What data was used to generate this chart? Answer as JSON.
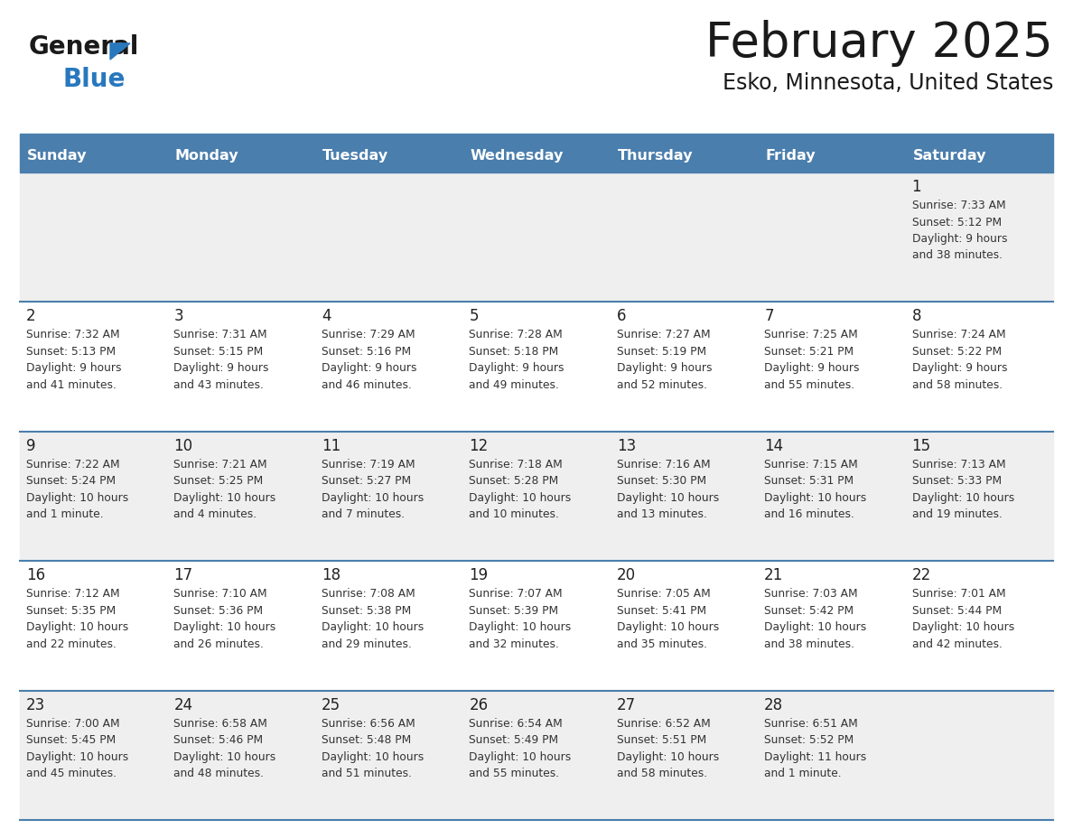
{
  "title": "February 2025",
  "subtitle": "Esko, Minnesota, United States",
  "header_bg": "#4a7ead",
  "header_text_color": "#ffffff",
  "days_of_week": [
    "Sunday",
    "Monday",
    "Tuesday",
    "Wednesday",
    "Thursday",
    "Friday",
    "Saturday"
  ],
  "row_bg_light": "#efefef",
  "row_bg_white": "#ffffff",
  "cell_text_color": "#333333",
  "day_num_color": "#222222",
  "divider_color": "#4a7ead",
  "calendar_data": [
    [
      null,
      null,
      null,
      null,
      null,
      null,
      {
        "day": "1",
        "sunrise": "Sunrise: 7:33 AM",
        "sunset": "Sunset: 5:12 PM",
        "daylight1": "Daylight: 9 hours",
        "daylight2": "and 38 minutes."
      }
    ],
    [
      {
        "day": "2",
        "sunrise": "Sunrise: 7:32 AM",
        "sunset": "Sunset: 5:13 PM",
        "daylight1": "Daylight: 9 hours",
        "daylight2": "and 41 minutes."
      },
      {
        "day": "3",
        "sunrise": "Sunrise: 7:31 AM",
        "sunset": "Sunset: 5:15 PM",
        "daylight1": "Daylight: 9 hours",
        "daylight2": "and 43 minutes."
      },
      {
        "day": "4",
        "sunrise": "Sunrise: 7:29 AM",
        "sunset": "Sunset: 5:16 PM",
        "daylight1": "Daylight: 9 hours",
        "daylight2": "and 46 minutes."
      },
      {
        "day": "5",
        "sunrise": "Sunrise: 7:28 AM",
        "sunset": "Sunset: 5:18 PM",
        "daylight1": "Daylight: 9 hours",
        "daylight2": "and 49 minutes."
      },
      {
        "day": "6",
        "sunrise": "Sunrise: 7:27 AM",
        "sunset": "Sunset: 5:19 PM",
        "daylight1": "Daylight: 9 hours",
        "daylight2": "and 52 minutes."
      },
      {
        "day": "7",
        "sunrise": "Sunrise: 7:25 AM",
        "sunset": "Sunset: 5:21 PM",
        "daylight1": "Daylight: 9 hours",
        "daylight2": "and 55 minutes."
      },
      {
        "day": "8",
        "sunrise": "Sunrise: 7:24 AM",
        "sunset": "Sunset: 5:22 PM",
        "daylight1": "Daylight: 9 hours",
        "daylight2": "and 58 minutes."
      }
    ],
    [
      {
        "day": "9",
        "sunrise": "Sunrise: 7:22 AM",
        "sunset": "Sunset: 5:24 PM",
        "daylight1": "Daylight: 10 hours",
        "daylight2": "and 1 minute."
      },
      {
        "day": "10",
        "sunrise": "Sunrise: 7:21 AM",
        "sunset": "Sunset: 5:25 PM",
        "daylight1": "Daylight: 10 hours",
        "daylight2": "and 4 minutes."
      },
      {
        "day": "11",
        "sunrise": "Sunrise: 7:19 AM",
        "sunset": "Sunset: 5:27 PM",
        "daylight1": "Daylight: 10 hours",
        "daylight2": "and 7 minutes."
      },
      {
        "day": "12",
        "sunrise": "Sunrise: 7:18 AM",
        "sunset": "Sunset: 5:28 PM",
        "daylight1": "Daylight: 10 hours",
        "daylight2": "and 10 minutes."
      },
      {
        "day": "13",
        "sunrise": "Sunrise: 7:16 AM",
        "sunset": "Sunset: 5:30 PM",
        "daylight1": "Daylight: 10 hours",
        "daylight2": "and 13 minutes."
      },
      {
        "day": "14",
        "sunrise": "Sunrise: 7:15 AM",
        "sunset": "Sunset: 5:31 PM",
        "daylight1": "Daylight: 10 hours",
        "daylight2": "and 16 minutes."
      },
      {
        "day": "15",
        "sunrise": "Sunrise: 7:13 AM",
        "sunset": "Sunset: 5:33 PM",
        "daylight1": "Daylight: 10 hours",
        "daylight2": "and 19 minutes."
      }
    ],
    [
      {
        "day": "16",
        "sunrise": "Sunrise: 7:12 AM",
        "sunset": "Sunset: 5:35 PM",
        "daylight1": "Daylight: 10 hours",
        "daylight2": "and 22 minutes."
      },
      {
        "day": "17",
        "sunrise": "Sunrise: 7:10 AM",
        "sunset": "Sunset: 5:36 PM",
        "daylight1": "Daylight: 10 hours",
        "daylight2": "and 26 minutes."
      },
      {
        "day": "18",
        "sunrise": "Sunrise: 7:08 AM",
        "sunset": "Sunset: 5:38 PM",
        "daylight1": "Daylight: 10 hours",
        "daylight2": "and 29 minutes."
      },
      {
        "day": "19",
        "sunrise": "Sunrise: 7:07 AM",
        "sunset": "Sunset: 5:39 PM",
        "daylight1": "Daylight: 10 hours",
        "daylight2": "and 32 minutes."
      },
      {
        "day": "20",
        "sunrise": "Sunrise: 7:05 AM",
        "sunset": "Sunset: 5:41 PM",
        "daylight1": "Daylight: 10 hours",
        "daylight2": "and 35 minutes."
      },
      {
        "day": "21",
        "sunrise": "Sunrise: 7:03 AM",
        "sunset": "Sunset: 5:42 PM",
        "daylight1": "Daylight: 10 hours",
        "daylight2": "and 38 minutes."
      },
      {
        "day": "22",
        "sunrise": "Sunrise: 7:01 AM",
        "sunset": "Sunset: 5:44 PM",
        "daylight1": "Daylight: 10 hours",
        "daylight2": "and 42 minutes."
      }
    ],
    [
      {
        "day": "23",
        "sunrise": "Sunrise: 7:00 AM",
        "sunset": "Sunset: 5:45 PM",
        "daylight1": "Daylight: 10 hours",
        "daylight2": "and 45 minutes."
      },
      {
        "day": "24",
        "sunrise": "Sunrise: 6:58 AM",
        "sunset": "Sunset: 5:46 PM",
        "daylight1": "Daylight: 10 hours",
        "daylight2": "and 48 minutes."
      },
      {
        "day": "25",
        "sunrise": "Sunrise: 6:56 AM",
        "sunset": "Sunset: 5:48 PM",
        "daylight1": "Daylight: 10 hours",
        "daylight2": "and 51 minutes."
      },
      {
        "day": "26",
        "sunrise": "Sunrise: 6:54 AM",
        "sunset": "Sunset: 5:49 PM",
        "daylight1": "Daylight: 10 hours",
        "daylight2": "and 55 minutes."
      },
      {
        "day": "27",
        "sunrise": "Sunrise: 6:52 AM",
        "sunset": "Sunset: 5:51 PM",
        "daylight1": "Daylight: 10 hours",
        "daylight2": "and 58 minutes."
      },
      {
        "day": "28",
        "sunrise": "Sunrise: 6:51 AM",
        "sunset": "Sunset: 5:52 PM",
        "daylight1": "Daylight: 11 hours",
        "daylight2": "and 1 minute."
      },
      null
    ]
  ]
}
